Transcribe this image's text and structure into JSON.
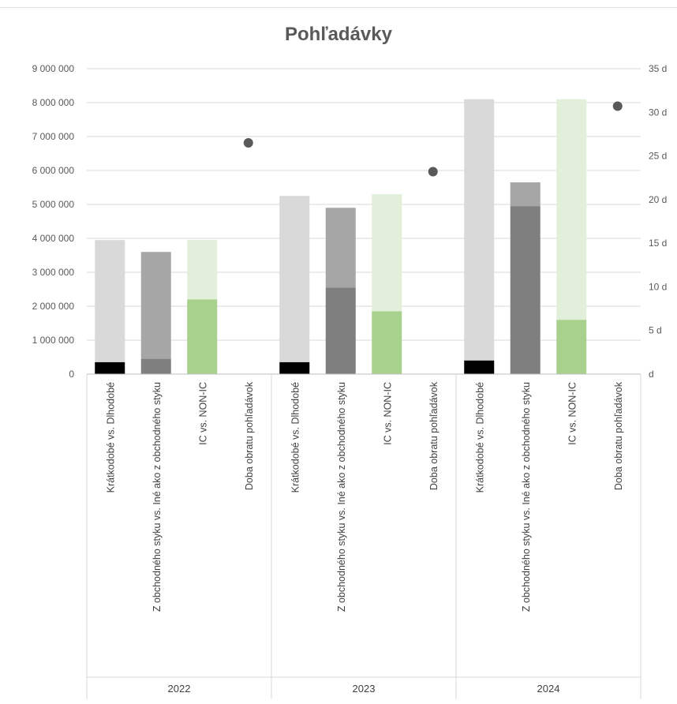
{
  "chart_data": {
    "type": "bar",
    "title": "Pohľadávky",
    "groups": [
      "2022",
      "2023",
      "2024"
    ],
    "categories": [
      "Krátkodobé vs. Dlhodobé",
      "Z obchodného styku vs. Iné ako z obchodného styku",
      "IC vs. NON-IC",
      "Doba obratu pohľadávok"
    ],
    "y_ticks": [
      "0",
      "1 000 000",
      "2 000 000",
      "3 000 000",
      "4 000 000",
      "5 000 000",
      "6 000 000",
      "7 000 000",
      "8 000 000",
      "9 000 000"
    ],
    "y2_ticks": [
      "d",
      "5 d",
      "10 d",
      "15 d",
      "20 d",
      "25 d",
      "30 d",
      "35 d"
    ],
    "ylim": [
      0,
      9000000
    ],
    "y2lim": [
      0,
      35
    ],
    "grid": true,
    "stacked_bars": [
      {
        "group": "2022",
        "category": "Krátkodobé vs. Dlhodobé",
        "bottom": 350000,
        "total": 3950000,
        "bottom_color": "#000000",
        "top_color": "#d9d9d9"
      },
      {
        "group": "2022",
        "category": "Z obchodného styku vs. Iné ako z obchodného styku",
        "bottom": 450000,
        "total": 3600000,
        "bottom_color": "#7f7f7f",
        "top_color": "#a6a6a6"
      },
      {
        "group": "2022",
        "category": "IC vs. NON-IC",
        "bottom": 2200000,
        "total": 3950000,
        "bottom_color": "#a9d18e",
        "top_color": "#e2efda"
      },
      {
        "group": "2023",
        "category": "Krátkodobé vs. Dlhodobé",
        "bottom": 350000,
        "total": 5250000,
        "bottom_color": "#000000",
        "top_color": "#d9d9d9"
      },
      {
        "group": "2023",
        "category": "Z obchodného styku vs. Iné ako z obchodného styku",
        "bottom": 2550000,
        "total": 4900000,
        "bottom_color": "#7f7f7f",
        "top_color": "#a6a6a6"
      },
      {
        "group": "2023",
        "category": "IC vs. NON-IC",
        "bottom": 1850000,
        "total": 5300000,
        "bottom_color": "#a9d18e",
        "top_color": "#e2efda"
      },
      {
        "group": "2024",
        "category": "Krátkodobé vs. Dlhodobé",
        "bottom": 400000,
        "total": 8100000,
        "bottom_color": "#000000",
        "top_color": "#d9d9d9"
      },
      {
        "group": "2024",
        "category": "Z obchodného styku vs. Iné ako z obchodného styku",
        "bottom": 4950000,
        "total": 5650000,
        "bottom_color": "#7f7f7f",
        "top_color": "#a6a6a6"
      },
      {
        "group": "2024",
        "category": "IC vs. NON-IC",
        "bottom": 1600000,
        "total": 8100000,
        "bottom_color": "#a9d18e",
        "top_color": "#e2efda"
      }
    ],
    "points": [
      {
        "group": "2022",
        "category": "Doba obratu pohľadávok",
        "days": 26.5
      },
      {
        "group": "2023",
        "category": "Doba obratu pohľadávok",
        "days": 23.2
      },
      {
        "group": "2024",
        "category": "Doba obratu pohľadávok",
        "days": 30.7
      }
    ],
    "point_color": "#595959",
    "grid_color": "#d9d9d9"
  }
}
